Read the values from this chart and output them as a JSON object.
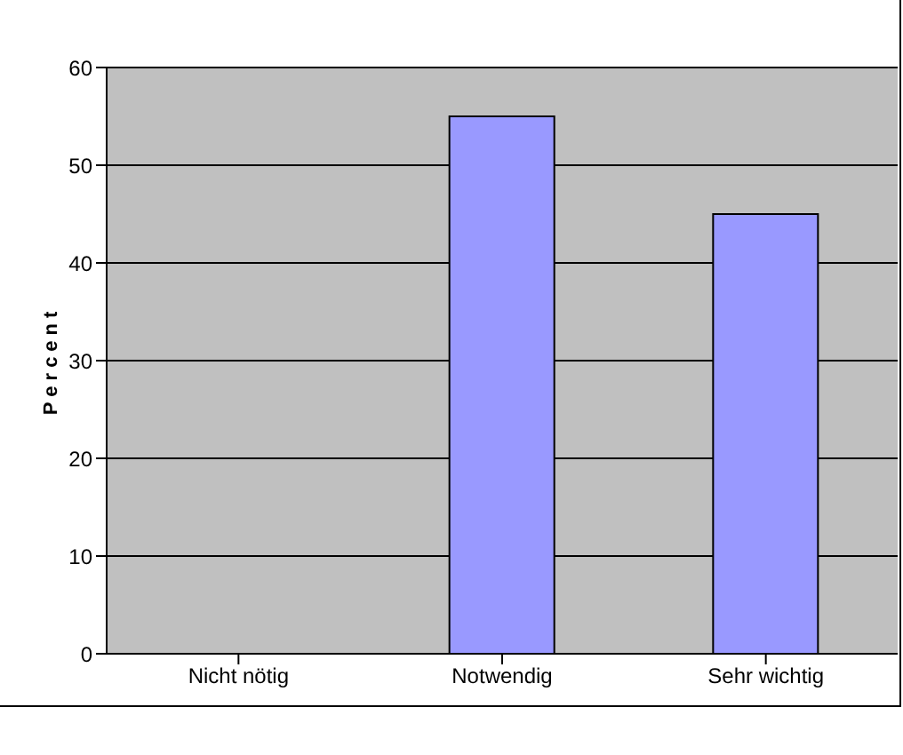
{
  "chart_data": {
    "type": "bar",
    "categories": [
      "Nicht nötig",
      "Notwendig",
      "Sehr wichtig"
    ],
    "values": [
      0,
      55,
      45
    ],
    "color": "#9999ff",
    "ylabel": "Percent",
    "ylim": [
      0,
      60
    ],
    "yticks": [
      0,
      10,
      20,
      30,
      40,
      50,
      60
    ],
    "grid": "y"
  }
}
